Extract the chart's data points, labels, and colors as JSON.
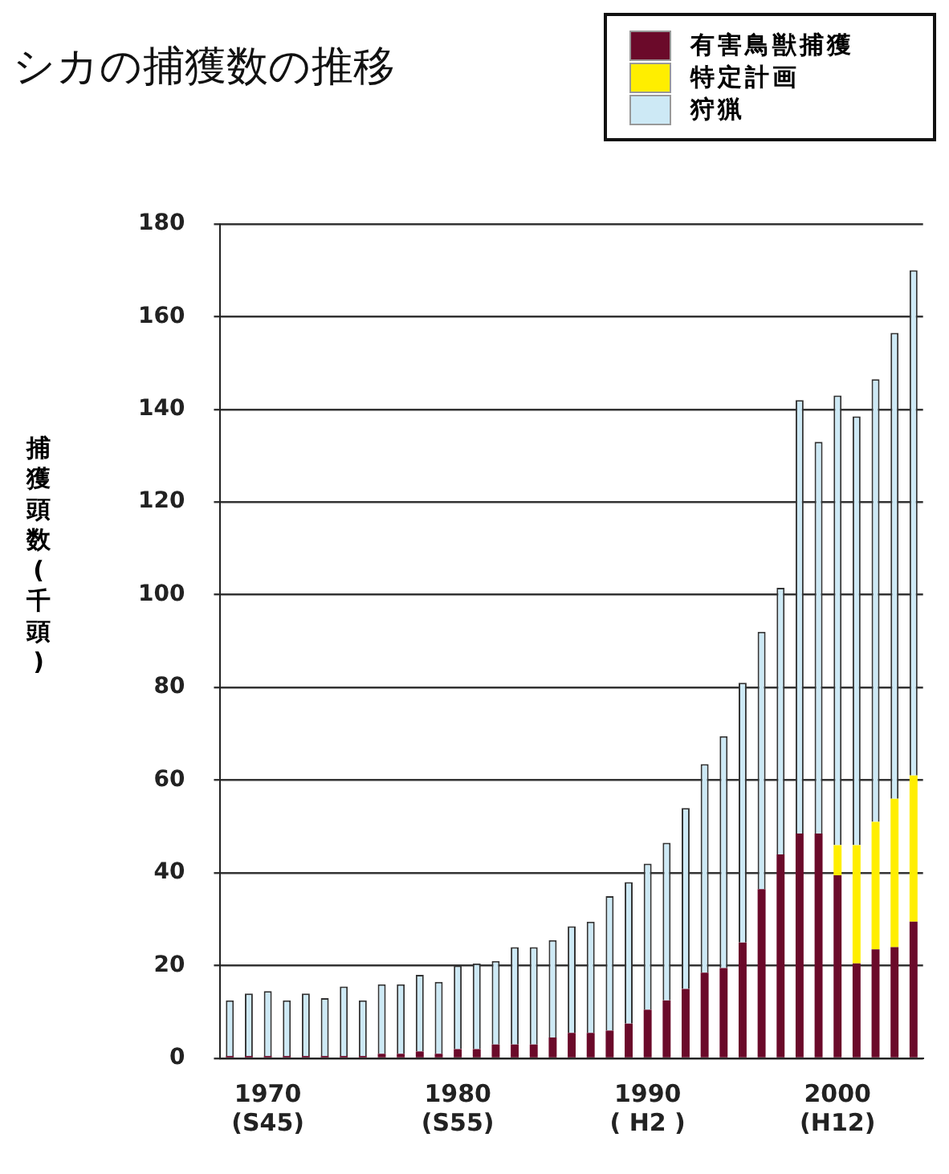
{
  "chart_data": {
    "type": "bar",
    "title": "シカの捕獲数の推移",
    "ylabel": "捕獲頭数(千頭)",
    "stacked": true,
    "categories": [
      null,
      null,
      "1970\n(S45)",
      null,
      null,
      null,
      null,
      null,
      null,
      null,
      null,
      null,
      "1980\n(S55)",
      null,
      null,
      null,
      null,
      null,
      null,
      null,
      null,
      null,
      "1990\n( H2 )",
      null,
      null,
      null,
      null,
      null,
      null,
      null,
      null,
      null,
      "2000\n(H12)",
      null,
      null,
      null,
      null
    ],
    "series": [
      {
        "name": "有害鳥獣捕獲",
        "color": "#6b0a2a",
        "values": [
          0.5,
          0.5,
          0.5,
          0.5,
          0.5,
          0.5,
          0.5,
          0.5,
          1,
          1,
          1.5,
          1,
          2,
          2,
          3,
          3,
          3,
          4.5,
          5.5,
          5.5,
          6,
          7.5,
          10.5,
          12.5,
          15,
          18.5,
          19.5,
          25,
          36.5,
          44,
          48.5,
          48.5,
          39.5,
          20.5,
          23.5,
          24,
          29.5
        ]
      },
      {
        "name": "特定計画",
        "color": "#ffee00",
        "values": [
          null,
          null,
          null,
          null,
          null,
          null,
          null,
          null,
          null,
          null,
          null,
          null,
          null,
          null,
          null,
          null,
          null,
          null,
          null,
          null,
          null,
          null,
          null,
          null,
          null,
          null,
          null,
          null,
          null,
          null,
          null,
          null,
          6.5,
          25.5,
          27.5,
          32,
          31.5
        ]
      },
      {
        "name": "狩猟",
        "color": "#cde9f5",
        "values": [
          12,
          13.5,
          14,
          12,
          13.5,
          12.5,
          15,
          12,
          15,
          15,
          16.5,
          15.5,
          18,
          18.5,
          18,
          21,
          21,
          21,
          23,
          24,
          29,
          30.5,
          31.5,
          34,
          39,
          45,
          50,
          56,
          55.5,
          57.5,
          93.5,
          84.5,
          97,
          92.5,
          95.5,
          100.5,
          109
        ]
      }
    ],
    "ylim": [
      0,
      180
    ],
    "yticks": [
      0,
      20,
      40,
      60,
      80,
      100,
      120,
      140,
      160,
      180
    ],
    "grid": "y",
    "legend": "top right"
  }
}
